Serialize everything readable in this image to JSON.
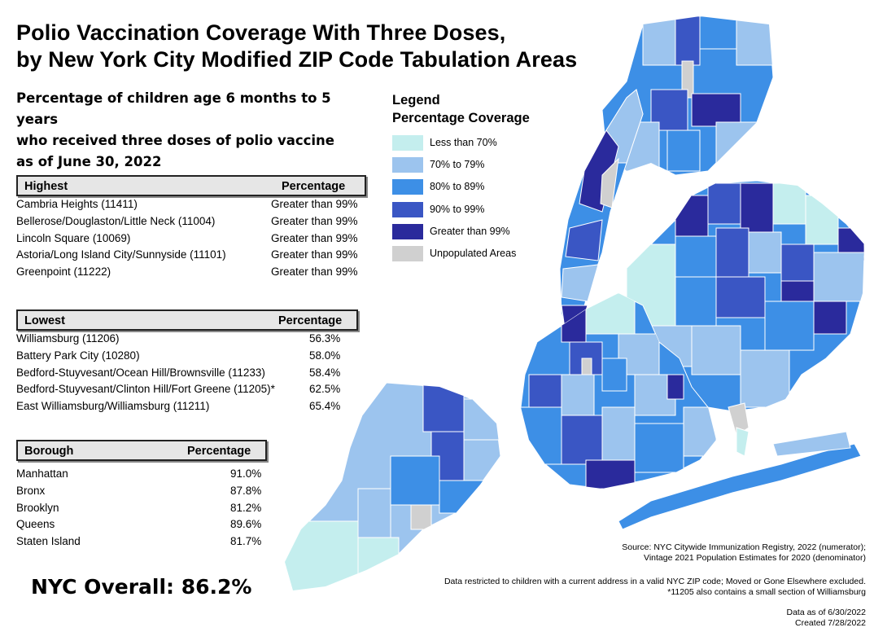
{
  "title": {
    "line1": "Polio Vaccination Coverage With Three Doses,",
    "line2": "by New York City Modified ZIP Code Tabulation Areas"
  },
  "subtitle": {
    "line1": "Percentage of children age 6 months to 5 years",
    "line2": "who received three doses of polio vaccine",
    "line3": "as of June 30, 2022"
  },
  "highest_table": {
    "header": [
      "Highest",
      "Percentage"
    ],
    "rows": [
      {
        "area": "Cambria Heights (11411)",
        "pct": "Greater than 99%"
      },
      {
        "area": "Bellerose/Douglaston/Little Neck (11004)",
        "pct": "Greater than 99%"
      },
      {
        "area": "Lincoln Square (10069)",
        "pct": "Greater than 99%"
      },
      {
        "area": "Astoria/Long Island City/Sunnyside (11101)",
        "pct": "Greater than 99%"
      },
      {
        "area": "Greenpoint (11222)",
        "pct": "Greater than 99%"
      }
    ]
  },
  "lowest_table": {
    "header": [
      "Lowest",
      "Percentage"
    ],
    "rows": [
      {
        "area": "Williamsburg (11206)",
        "pct": "56.3%"
      },
      {
        "area": "Battery Park City (10280)",
        "pct": "58.0%"
      },
      {
        "area": "Bedford-Stuyvesant/Ocean Hill/Brownsville (11233)",
        "pct": "58.4%"
      },
      {
        "area": "Bedford-Stuyvesant/Clinton Hill/Fort Greene (11205)*",
        "pct": "62.5%"
      },
      {
        "area": "East Williamsburg/Williamsburg (11211)",
        "pct": "65.4%"
      }
    ]
  },
  "borough_table": {
    "header": [
      "Borough",
      "Percentage"
    ],
    "rows": [
      {
        "area": "Manhattan",
        "pct": "91.0%"
      },
      {
        "area": "Bronx",
        "pct": "87.8%"
      },
      {
        "area": "Brooklyn",
        "pct": "81.2%"
      },
      {
        "area": "Queens",
        "pct": "89.6%"
      },
      {
        "area": "Staten Island",
        "pct": "81.7%"
      }
    ]
  },
  "overall": "NYC Overall: 86.2%",
  "legend": {
    "title1": "Legend",
    "title2": "Percentage Coverage",
    "items": [
      {
        "label": "Less than 70%",
        "color": "#c4eeee"
      },
      {
        "label": "70% to 79%",
        "color": "#9cc4ee"
      },
      {
        "label": "80% to 89%",
        "color": "#3d8fe6"
      },
      {
        "label": "90% to 99%",
        "color": "#3a56c4"
      },
      {
        "label": "Greater than 99%",
        "color": "#2a2a9c"
      },
      {
        "label": "Unpopulated Areas",
        "color": "#d0d0d0"
      }
    ]
  },
  "notes": {
    "source1": "Source: NYC Citywide Immunization Registry, 2022 (numerator);",
    "source2": "Vintage 2021 Population Estimates for 2020 (denominator)",
    "data1": "Data restricted to children with a current address in a valid NYC ZIP code; Moved or Gone Elsewhere excluded.",
    "data2": "*11205 also contains a small section of Williamsburg",
    "asof": "Data as of 6/30/2022",
    "created": "Created 7/28/2022"
  }
}
